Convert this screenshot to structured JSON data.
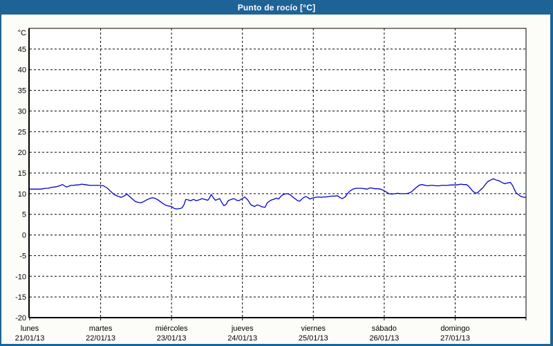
{
  "window": {
    "title": "Punto de rocío [°C]"
  },
  "colors": {
    "titlebar_bg": "#1e6396",
    "titlebar_text": "#ffffff",
    "frame_border": "#1e6396",
    "content_bg": "#fcfcf9",
    "plot_bg": "#ffffff",
    "grid": "#000000",
    "text": "#000000",
    "line": "#0000cc"
  },
  "chart_data": {
    "type": "line",
    "title": "Punto de rocío [°C]",
    "ylabel": "°C",
    "xlabel": "",
    "ylim": [
      -20,
      50
    ],
    "yticks": [
      45,
      40,
      35,
      30,
      25,
      20,
      15,
      10,
      5,
      0,
      -5,
      -10,
      -15,
      -20
    ],
    "grid": "dashed",
    "legend": "none",
    "xlim_days": [
      0,
      7
    ],
    "x_axis": {
      "days": [
        {
          "name": "lunes",
          "date": "21/01/13"
        },
        {
          "name": "martes",
          "date": "22/01/13"
        },
        {
          "name": "miércoles",
          "date": "23/01/13"
        },
        {
          "name": "jueves",
          "date": "24/01/13"
        },
        {
          "name": "viernes",
          "date": "25/01/13"
        },
        {
          "name": "sábado",
          "date": "26/01/13"
        },
        {
          "name": "domingo",
          "date": "27/01/13"
        }
      ]
    },
    "series": [
      {
        "name": "Punto de rocío",
        "unit": "°C",
        "color": "#0000cc",
        "points": [
          [
            0.0,
            11.1
          ],
          [
            0.05,
            11.1
          ],
          [
            0.1,
            11.1
          ],
          [
            0.15,
            11.1
          ],
          [
            0.19,
            11.2
          ],
          [
            0.22,
            11.3
          ],
          [
            0.26,
            11.3
          ],
          [
            0.3,
            11.5
          ],
          [
            0.34,
            11.6
          ],
          [
            0.38,
            11.7
          ],
          [
            0.42,
            11.9
          ],
          [
            0.46,
            12.2
          ],
          [
            0.49,
            11.9
          ],
          [
            0.52,
            11.6
          ],
          [
            0.55,
            11.8
          ],
          [
            0.58,
            12.0
          ],
          [
            0.61,
            12.0
          ],
          [
            0.65,
            12.1
          ],
          [
            0.69,
            12.1
          ],
          [
            0.73,
            12.3
          ],
          [
            0.77,
            12.2
          ],
          [
            0.81,
            12.1
          ],
          [
            0.85,
            12.0
          ],
          [
            0.89,
            12.0
          ],
          [
            0.93,
            12.0
          ],
          [
            0.97,
            12.0
          ],
          [
            1.0,
            12.0
          ],
          [
            1.04,
            11.9
          ],
          [
            1.09,
            11.4
          ],
          [
            1.14,
            10.6
          ],
          [
            1.19,
            9.8
          ],
          [
            1.24,
            9.4
          ],
          [
            1.29,
            9.1
          ],
          [
            1.34,
            9.5
          ],
          [
            1.37,
            9.9
          ],
          [
            1.41,
            9.3
          ],
          [
            1.45,
            8.7
          ],
          [
            1.49,
            8.1
          ],
          [
            1.53,
            7.9
          ],
          [
            1.57,
            7.8
          ],
          [
            1.61,
            8.1
          ],
          [
            1.65,
            8.5
          ],
          [
            1.69,
            8.8
          ],
          [
            1.73,
            9.0
          ],
          [
            1.76,
            8.9
          ],
          [
            1.8,
            8.6
          ],
          [
            1.84,
            8.1
          ],
          [
            1.88,
            7.6
          ],
          [
            1.92,
            7.2
          ],
          [
            1.96,
            7.0
          ],
          [
            2.0,
            6.9
          ],
          [
            2.04,
            6.4
          ],
          [
            2.08,
            6.3
          ],
          [
            2.12,
            6.4
          ],
          [
            2.15,
            6.6
          ],
          [
            2.18,
            7.5
          ],
          [
            2.2,
            8.6
          ],
          [
            2.23,
            8.5
          ],
          [
            2.27,
            8.3
          ],
          [
            2.31,
            8.6
          ],
          [
            2.35,
            8.3
          ],
          [
            2.39,
            8.5
          ],
          [
            2.43,
            8.8
          ],
          [
            2.47,
            8.6
          ],
          [
            2.51,
            8.4
          ],
          [
            2.53,
            8.8
          ],
          [
            2.56,
            9.8
          ],
          [
            2.59,
            9.0
          ],
          [
            2.62,
            8.4
          ],
          [
            2.65,
            8.6
          ],
          [
            2.68,
            8.8
          ],
          [
            2.71,
            7.8
          ],
          [
            2.74,
            7.1
          ],
          [
            2.77,
            7.4
          ],
          [
            2.8,
            8.3
          ],
          [
            2.84,
            8.6
          ],
          [
            2.88,
            8.8
          ],
          [
            2.92,
            8.4
          ],
          [
            2.95,
            8.3
          ],
          [
            2.99,
            8.7
          ],
          [
            3.03,
            9.2
          ],
          [
            3.07,
            8.6
          ],
          [
            3.12,
            7.3
          ],
          [
            3.17,
            6.9
          ],
          [
            3.21,
            7.3
          ],
          [
            3.24,
            7.1
          ],
          [
            3.28,
            6.8
          ],
          [
            3.32,
            6.7
          ],
          [
            3.35,
            7.8
          ],
          [
            3.4,
            8.4
          ],
          [
            3.45,
            8.7
          ],
          [
            3.48,
            8.9
          ],
          [
            3.51,
            8.7
          ],
          [
            3.55,
            9.5
          ],
          [
            3.59,
            9.9
          ],
          [
            3.63,
            10.0
          ],
          [
            3.67,
            9.8
          ],
          [
            3.71,
            9.2
          ],
          [
            3.74,
            8.8
          ],
          [
            3.78,
            8.3
          ],
          [
            3.81,
            8.2
          ],
          [
            3.85,
            8.9
          ],
          [
            3.89,
            9.3
          ],
          [
            3.92,
            9.1
          ],
          [
            3.95,
            8.7
          ],
          [
            3.98,
            8.9
          ],
          [
            4.03,
            9.1
          ],
          [
            4.07,
            9.2
          ],
          [
            4.11,
            9.1
          ],
          [
            4.14,
            9.2
          ],
          [
            4.18,
            9.2
          ],
          [
            4.22,
            9.3
          ],
          [
            4.26,
            9.4
          ],
          [
            4.3,
            9.4
          ],
          [
            4.34,
            9.5
          ],
          [
            4.38,
            9.0
          ],
          [
            4.41,
            8.8
          ],
          [
            4.45,
            9.2
          ],
          [
            4.48,
            10.0
          ],
          [
            4.52,
            10.7
          ],
          [
            4.56,
            11.1
          ],
          [
            4.6,
            11.3
          ],
          [
            4.64,
            11.3
          ],
          [
            4.68,
            11.3
          ],
          [
            4.72,
            11.2
          ],
          [
            4.76,
            11.1
          ],
          [
            4.8,
            11.4
          ],
          [
            4.84,
            11.3
          ],
          [
            4.87,
            11.2
          ],
          [
            4.91,
            11.2
          ],
          [
            4.95,
            11.1
          ],
          [
            4.99,
            10.8
          ],
          [
            5.03,
            10.4
          ],
          [
            5.07,
            10.0
          ],
          [
            5.11,
            9.9
          ],
          [
            5.15,
            10.0
          ],
          [
            5.19,
            10.1
          ],
          [
            5.23,
            10.0
          ],
          [
            5.26,
            10.0
          ],
          [
            5.3,
            10.0
          ],
          [
            5.34,
            10.1
          ],
          [
            5.38,
            10.4
          ],
          [
            5.42,
            11.0
          ],
          [
            5.46,
            11.6
          ],
          [
            5.5,
            12.1
          ],
          [
            5.54,
            12.2
          ],
          [
            5.58,
            12.0
          ],
          [
            5.62,
            11.9
          ],
          [
            5.65,
            12.0
          ],
          [
            5.69,
            12.0
          ],
          [
            5.73,
            11.9
          ],
          [
            5.77,
            11.9
          ],
          [
            5.81,
            12.0
          ],
          [
            5.85,
            12.0
          ],
          [
            5.89,
            12.0
          ],
          [
            5.93,
            12.1
          ],
          [
            5.97,
            12.1
          ],
          [
            6.01,
            12.1
          ],
          [
            6.05,
            12.2
          ],
          [
            6.08,
            12.3
          ],
          [
            6.12,
            12.2
          ],
          [
            6.16,
            12.2
          ],
          [
            6.19,
            11.8
          ],
          [
            6.22,
            11.2
          ],
          [
            6.25,
            10.6
          ],
          [
            6.29,
            10.1
          ],
          [
            6.32,
            10.3
          ],
          [
            6.35,
            10.8
          ],
          [
            6.39,
            11.4
          ],
          [
            6.43,
            12.3
          ],
          [
            6.46,
            12.9
          ],
          [
            6.5,
            13.3
          ],
          [
            6.54,
            13.6
          ],
          [
            6.58,
            13.3
          ],
          [
            6.62,
            13.1
          ],
          [
            6.66,
            12.7
          ],
          [
            6.7,
            12.4
          ],
          [
            6.74,
            12.6
          ],
          [
            6.78,
            12.7
          ],
          [
            6.81,
            12.0
          ],
          [
            6.83,
            11.2
          ],
          [
            6.86,
            10.2
          ],
          [
            6.89,
            9.8
          ],
          [
            6.92,
            9.4
          ],
          [
            6.95,
            9.2
          ],
          [
            6.98,
            9.1
          ],
          [
            7.0,
            9.2
          ]
        ]
      }
    ]
  }
}
